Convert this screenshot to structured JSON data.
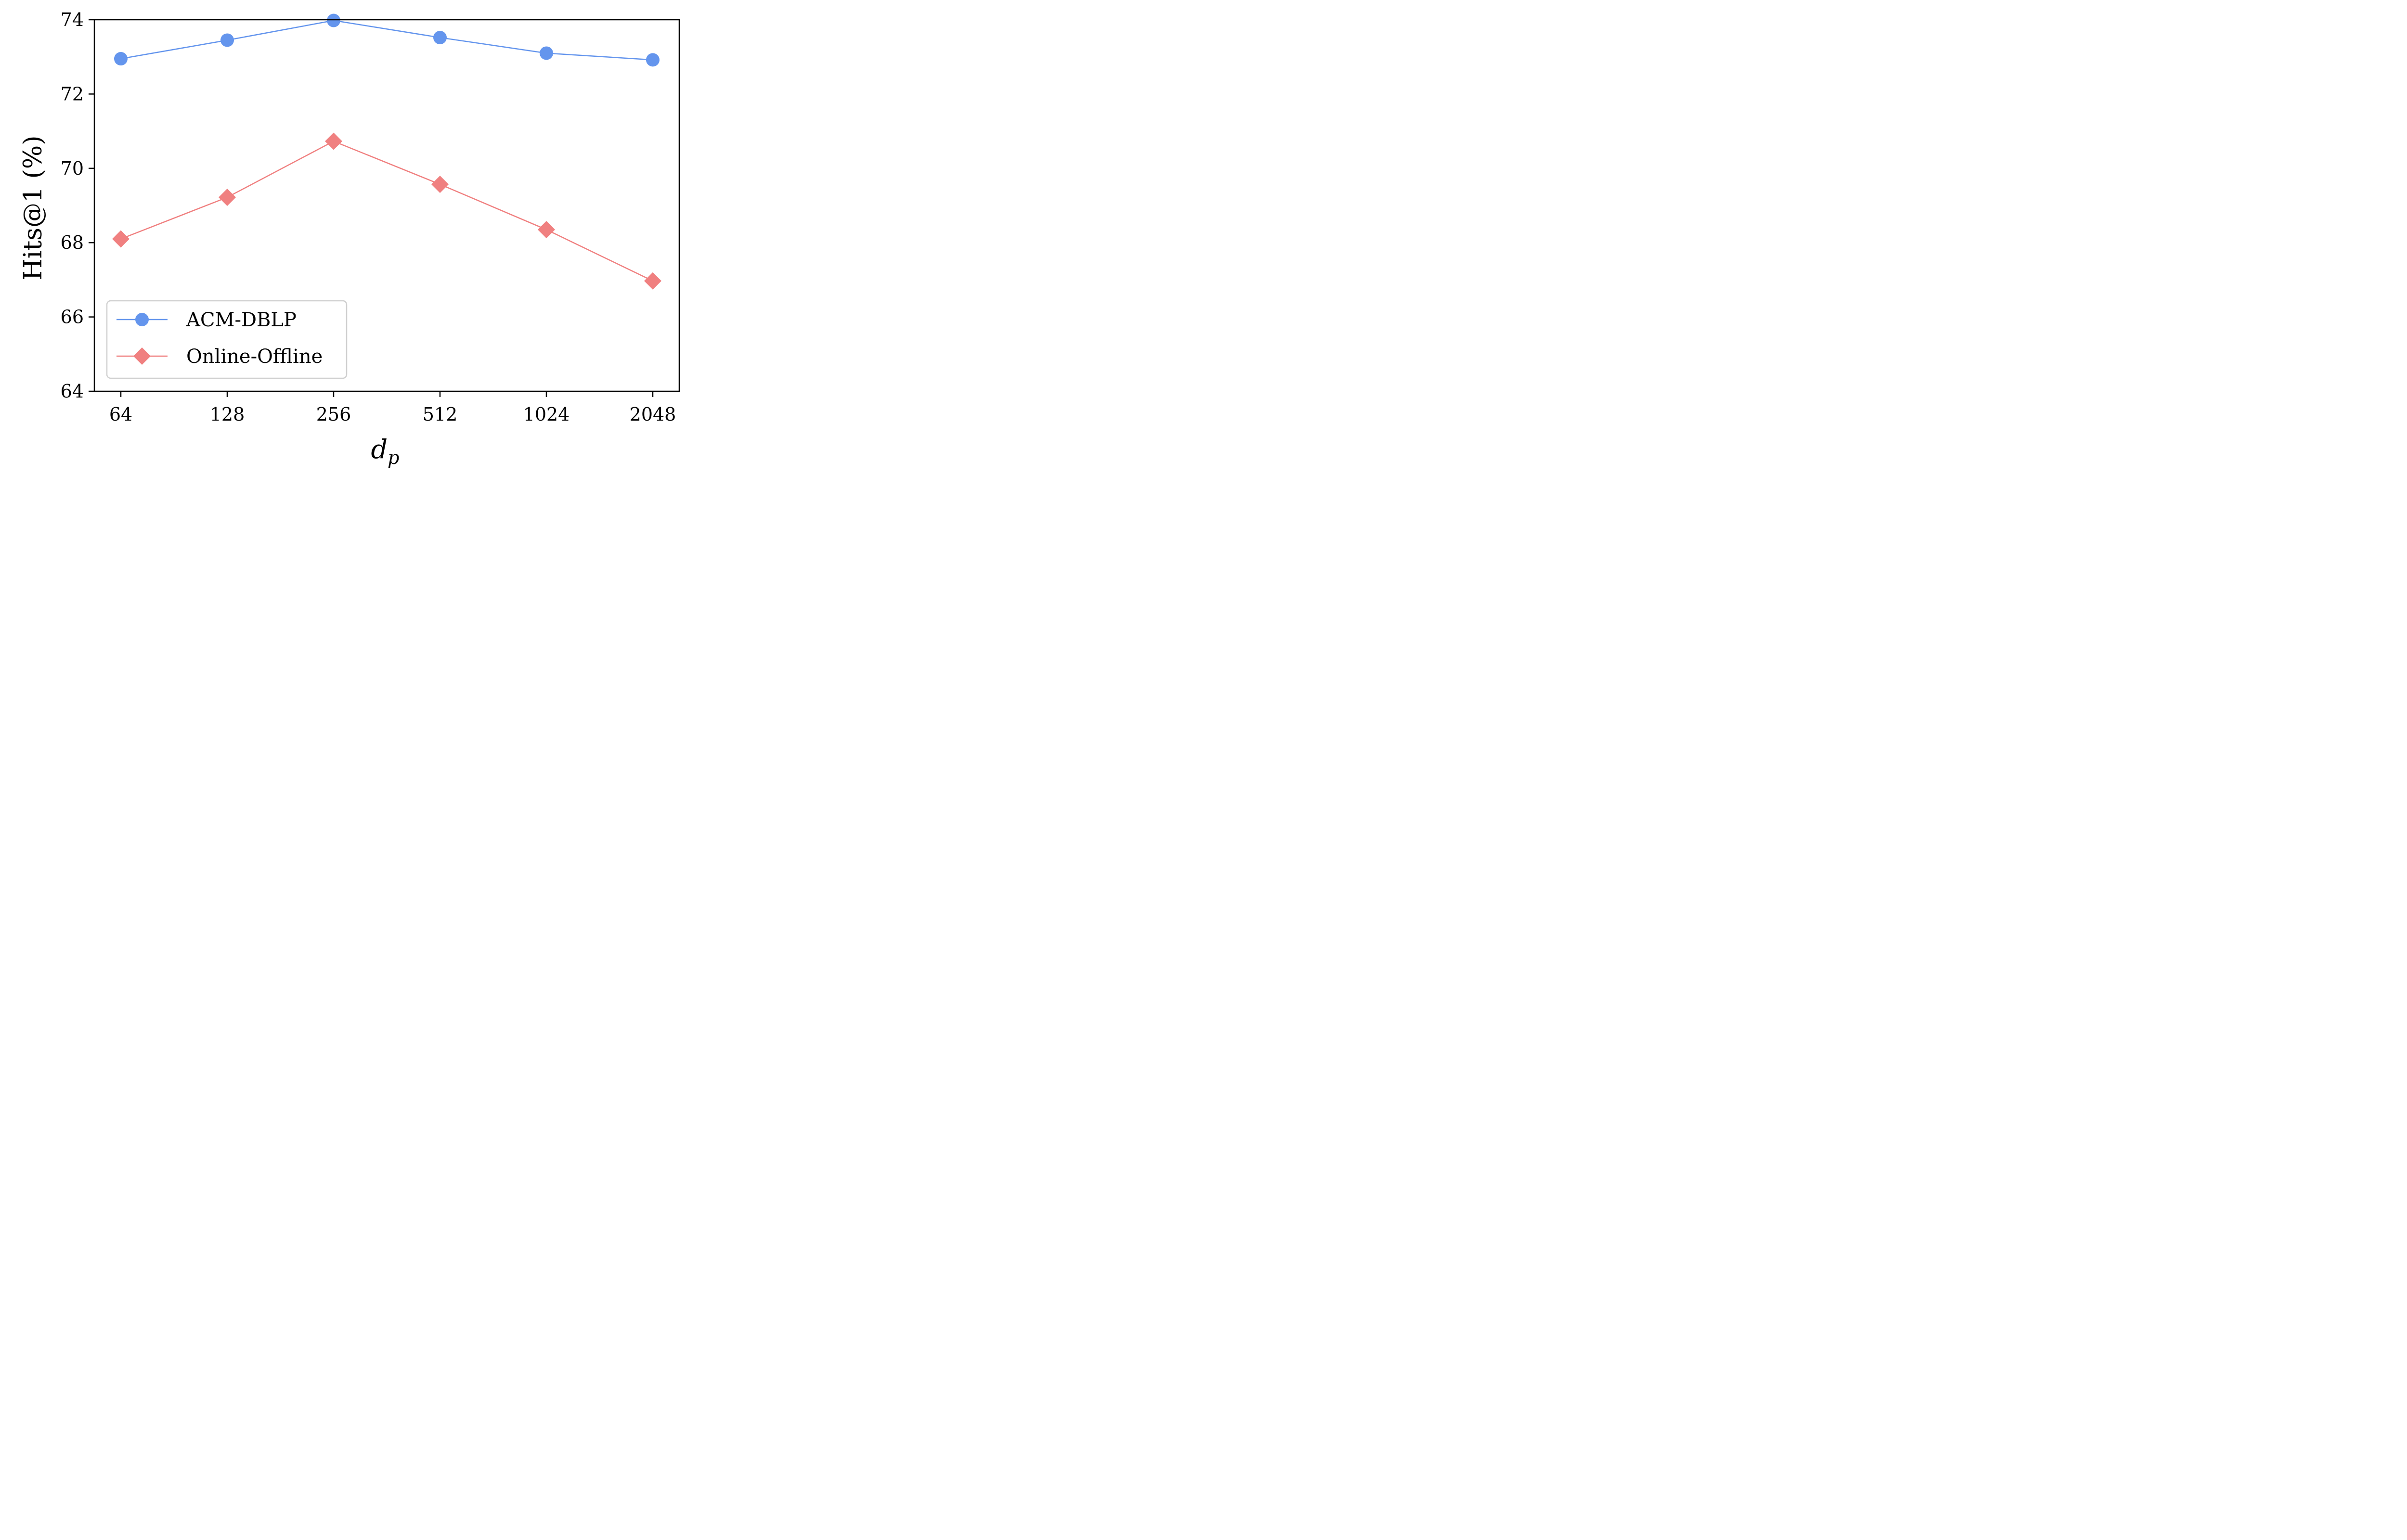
{
  "chart_data": {
    "type": "line",
    "categories": [
      "64",
      "128",
      "256",
      "512",
      "1024",
      "2048"
    ],
    "series": [
      {
        "name": "ACM-DBLP",
        "values": [
          72.95,
          73.45,
          73.98,
          73.52,
          73.1,
          72.92
        ],
        "color": "#6495ED",
        "marker": "circle"
      },
      {
        "name": "Online-Offline",
        "values": [
          68.1,
          69.22,
          70.73,
          69.57,
          68.35,
          66.97
        ],
        "color": "#F08080",
        "marker": "diamond"
      }
    ],
    "xlabel_main": "d",
    "xlabel_sub": "p",
    "ylabel": "Hits@1 (%)",
    "ylim": [
      64,
      74
    ],
    "yticks": [
      "64",
      "66",
      "68",
      "70",
      "72",
      "74"
    ],
    "grid": false,
    "legend_position": "lower-left"
  }
}
